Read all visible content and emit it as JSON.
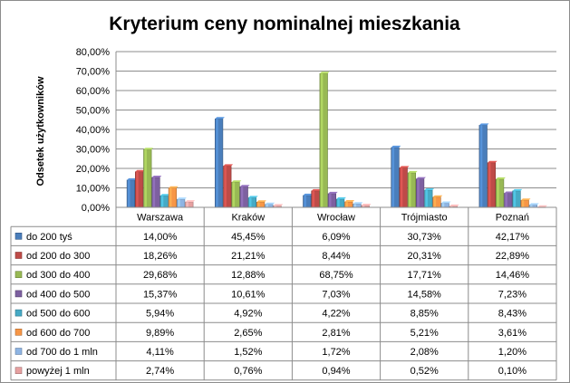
{
  "chart_data": {
    "type": "bar",
    "title": "Kryterium ceny nominalnej mieszkania",
    "ylabel": "Odsetek użytkowników",
    "xlabel": "",
    "ylim": [
      0,
      80
    ],
    "ytick_labels": [
      "0,00%",
      "10,00%",
      "20,00%",
      "30,00%",
      "40,00%",
      "50,00%",
      "60,00%",
      "70,00%",
      "80,00%"
    ],
    "grid": true,
    "legend": "data-table",
    "categories": [
      "Warszawa",
      "Kraków",
      "Wrocław",
      "Trójmiasto",
      "Poznań"
    ],
    "series": [
      {
        "name": "do 200 tyś",
        "color": "#4a7ebb",
        "values": [
          14.0,
          45.45,
          6.09,
          30.73,
          42.17
        ],
        "labels": [
          "14,00%",
          "45,45%",
          "6,09%",
          "30,73%",
          "42,17%"
        ]
      },
      {
        "name": "od 200 do 300",
        "color": "#be4b48",
        "values": [
          18.26,
          21.21,
          8.44,
          20.31,
          22.89
        ],
        "labels": [
          "18,26%",
          "21,21%",
          "8,44%",
          "20,31%",
          "22,89%"
        ]
      },
      {
        "name": "od 300 do 400",
        "color": "#98b954",
        "values": [
          29.68,
          12.88,
          68.75,
          17.71,
          14.46
        ],
        "labels": [
          "29,68%",
          "12,88%",
          "68,75%",
          "17,71%",
          "14,46%"
        ]
      },
      {
        "name": "od 400 do 500",
        "color": "#7d60a0",
        "values": [
          15.37,
          10.61,
          7.03,
          14.58,
          7.23
        ],
        "labels": [
          "15,37%",
          "10,61%",
          "7,03%",
          "14,58%",
          "7,23%"
        ]
      },
      {
        "name": "od 500 do 600",
        "color": "#46aac5",
        "values": [
          5.94,
          4.92,
          4.22,
          8.85,
          8.43
        ],
        "labels": [
          "5,94%",
          "4,92%",
          "4,22%",
          "8,85%",
          "8,43%"
        ]
      },
      {
        "name": "od 600 do 700",
        "color": "#f79646",
        "values": [
          9.89,
          2.65,
          2.81,
          5.21,
          3.61
        ],
        "labels": [
          "9,89%",
          "2,65%",
          "2,81%",
          "5,21%",
          "3,61%"
        ]
      },
      {
        "name": "od 700 do 1 mln",
        "color": "#8eb4e3",
        "values": [
          4.11,
          1.52,
          1.72,
          2.08,
          1.2
        ],
        "labels": [
          "4,11%",
          "1,52%",
          "1,72%",
          "2,08%",
          "1,20%"
        ]
      },
      {
        "name": "powyżej 1 mln",
        "color": "#e6a0a0",
        "values": [
          2.74,
          0.76,
          0.94,
          0.52,
          0.1
        ],
        "labels": [
          "2,74%",
          "0,76%",
          "0,94%",
          "0,52%",
          "0,10%"
        ]
      }
    ]
  }
}
